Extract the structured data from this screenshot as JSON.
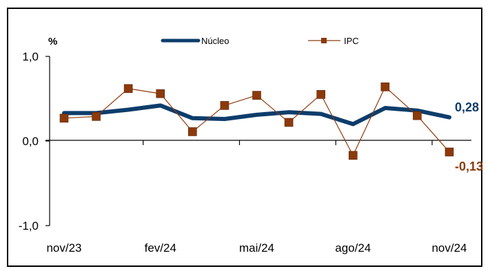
{
  "chart_data": {
    "type": "line",
    "unit_label": "%",
    "y_ticks": [
      {
        "value": 1.0,
        "label": "1,0"
      },
      {
        "value": 0.0,
        "label": "0,0"
      },
      {
        "value": -1.0,
        "label": "-1,0"
      }
    ],
    "ylim": [
      -1.0,
      1.0
    ],
    "x_count": 13,
    "x_tick_labels": [
      {
        "index": 0,
        "label": "nov/23"
      },
      {
        "index": 3,
        "label": "fev/24"
      },
      {
        "index": 6,
        "label": "mai/24"
      },
      {
        "index": 9,
        "label": "ago/24"
      },
      {
        "index": 12,
        "label": "nov/24"
      }
    ],
    "categories": [
      "nov/23",
      "dez/23",
      "jan/24",
      "fev/24",
      "mar/24",
      "abr/24",
      "mai/24",
      "jun/24",
      "jul/24",
      "ago/24",
      "set/24",
      "out/24",
      "nov/24"
    ],
    "series": [
      {
        "name": "Núcleo",
        "color": "#0d3d6b",
        "marker": "none",
        "values": [
          0.33,
          0.33,
          0.37,
          0.42,
          0.27,
          0.26,
          0.31,
          0.34,
          0.32,
          0.2,
          0.39,
          0.36,
          0.28
        ],
        "end_label": "0,28"
      },
      {
        "name": "IPC",
        "color": "#8c3a0c",
        "marker": "square",
        "values": [
          0.27,
          0.29,
          0.62,
          0.56,
          0.11,
          0.42,
          0.54,
          0.22,
          0.55,
          -0.17,
          0.64,
          0.3,
          -0.13
        ],
        "end_label": "-0,13"
      }
    ],
    "legend_position": "top-center",
    "grid": false
  }
}
